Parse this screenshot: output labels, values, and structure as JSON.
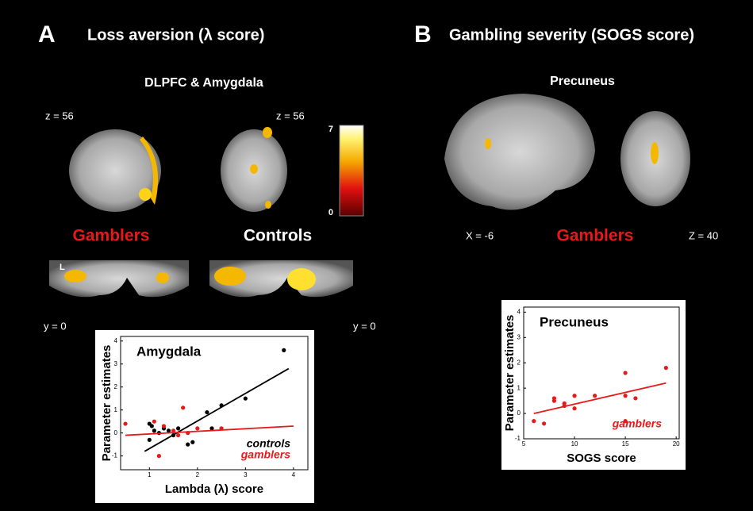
{
  "panel_a": {
    "letter": "A",
    "title": "Loss aversion (λ score)",
    "region": "DLPFC & Amygdala",
    "slice_left": "z = 56",
    "slice_right": "z = 56",
    "group_left": "Gamblers",
    "group_right": "Controls",
    "side_marker": "L",
    "coronal_left": "y = 0",
    "coronal_right": "y = 0",
    "colorbar": {
      "max": 7,
      "min": 0
    }
  },
  "panel_b": {
    "letter": "B",
    "title": "Gambling severity (SOGS score)",
    "region": "Precuneus",
    "slice_left": "X = -6",
    "group": "Gamblers",
    "slice_right": "Z = 40"
  },
  "chart_data": [
    {
      "type": "scatter",
      "title": "Amygdala",
      "x_label": "Lambda (λ) score",
      "y_label": "Parameter estimates",
      "xlim": [
        0.4,
        4.3
      ],
      "xticks": [
        1,
        2,
        3,
        4
      ],
      "ylim": [
        -1.6,
        4.2
      ],
      "yticks": [
        -1,
        0,
        1,
        2,
        3,
        4
      ],
      "series": [
        {
          "name": "controls",
          "color": "#000000",
          "x": [
            1.0,
            1.0,
            1.05,
            1.1,
            1.2,
            1.3,
            1.4,
            1.5,
            1.6,
            1.8,
            1.9,
            2.2,
            2.3,
            2.5,
            3.0,
            3.8
          ],
          "y": [
            0.4,
            -0.3,
            0.3,
            0.1,
            0.0,
            0.2,
            0.1,
            -0.1,
            0.2,
            -0.5,
            -0.4,
            0.9,
            0.2,
            1.2,
            1.5,
            3.6
          ],
          "fit_x": [
            0.9,
            3.9
          ],
          "fit_y": [
            -0.8,
            2.8
          ]
        },
        {
          "name": "gamblers",
          "color": "#e8191a",
          "x": [
            0.5,
            1.1,
            1.2,
            1.3,
            1.5,
            1.6,
            1.7,
            1.8,
            2.0,
            2.5
          ],
          "y": [
            0.4,
            0.5,
            -1.0,
            0.3,
            0.1,
            -0.1,
            1.1,
            0.0,
            0.2,
            0.2
          ],
          "fit_x": [
            0.5,
            4.0
          ],
          "fit_y": [
            -0.1,
            0.3
          ]
        }
      ]
    },
    {
      "type": "scatter",
      "title": "Precuneus",
      "x_label": "SOGS score",
      "y_label": "Parameter estimates",
      "xlim": [
        5,
        20.3
      ],
      "xticks": [
        5,
        10,
        15,
        20
      ],
      "ylim": [
        -1,
        4.2
      ],
      "yticks": [
        -1,
        0,
        1,
        2,
        3,
        4
      ],
      "series": [
        {
          "name": "gamblers",
          "color": "#e8191a",
          "x": [
            6,
            7,
            8,
            8,
            9,
            9,
            10,
            10,
            12,
            15,
            15,
            15,
            16,
            19
          ],
          "y": [
            -0.3,
            -0.4,
            0.5,
            0.6,
            0.4,
            0.3,
            0.7,
            0.2,
            0.7,
            1.6,
            0.7,
            -0.3,
            0.6,
            1.8
          ],
          "fit_x": [
            6,
            19
          ],
          "fit_y": [
            0.0,
            1.2
          ]
        }
      ]
    }
  ]
}
